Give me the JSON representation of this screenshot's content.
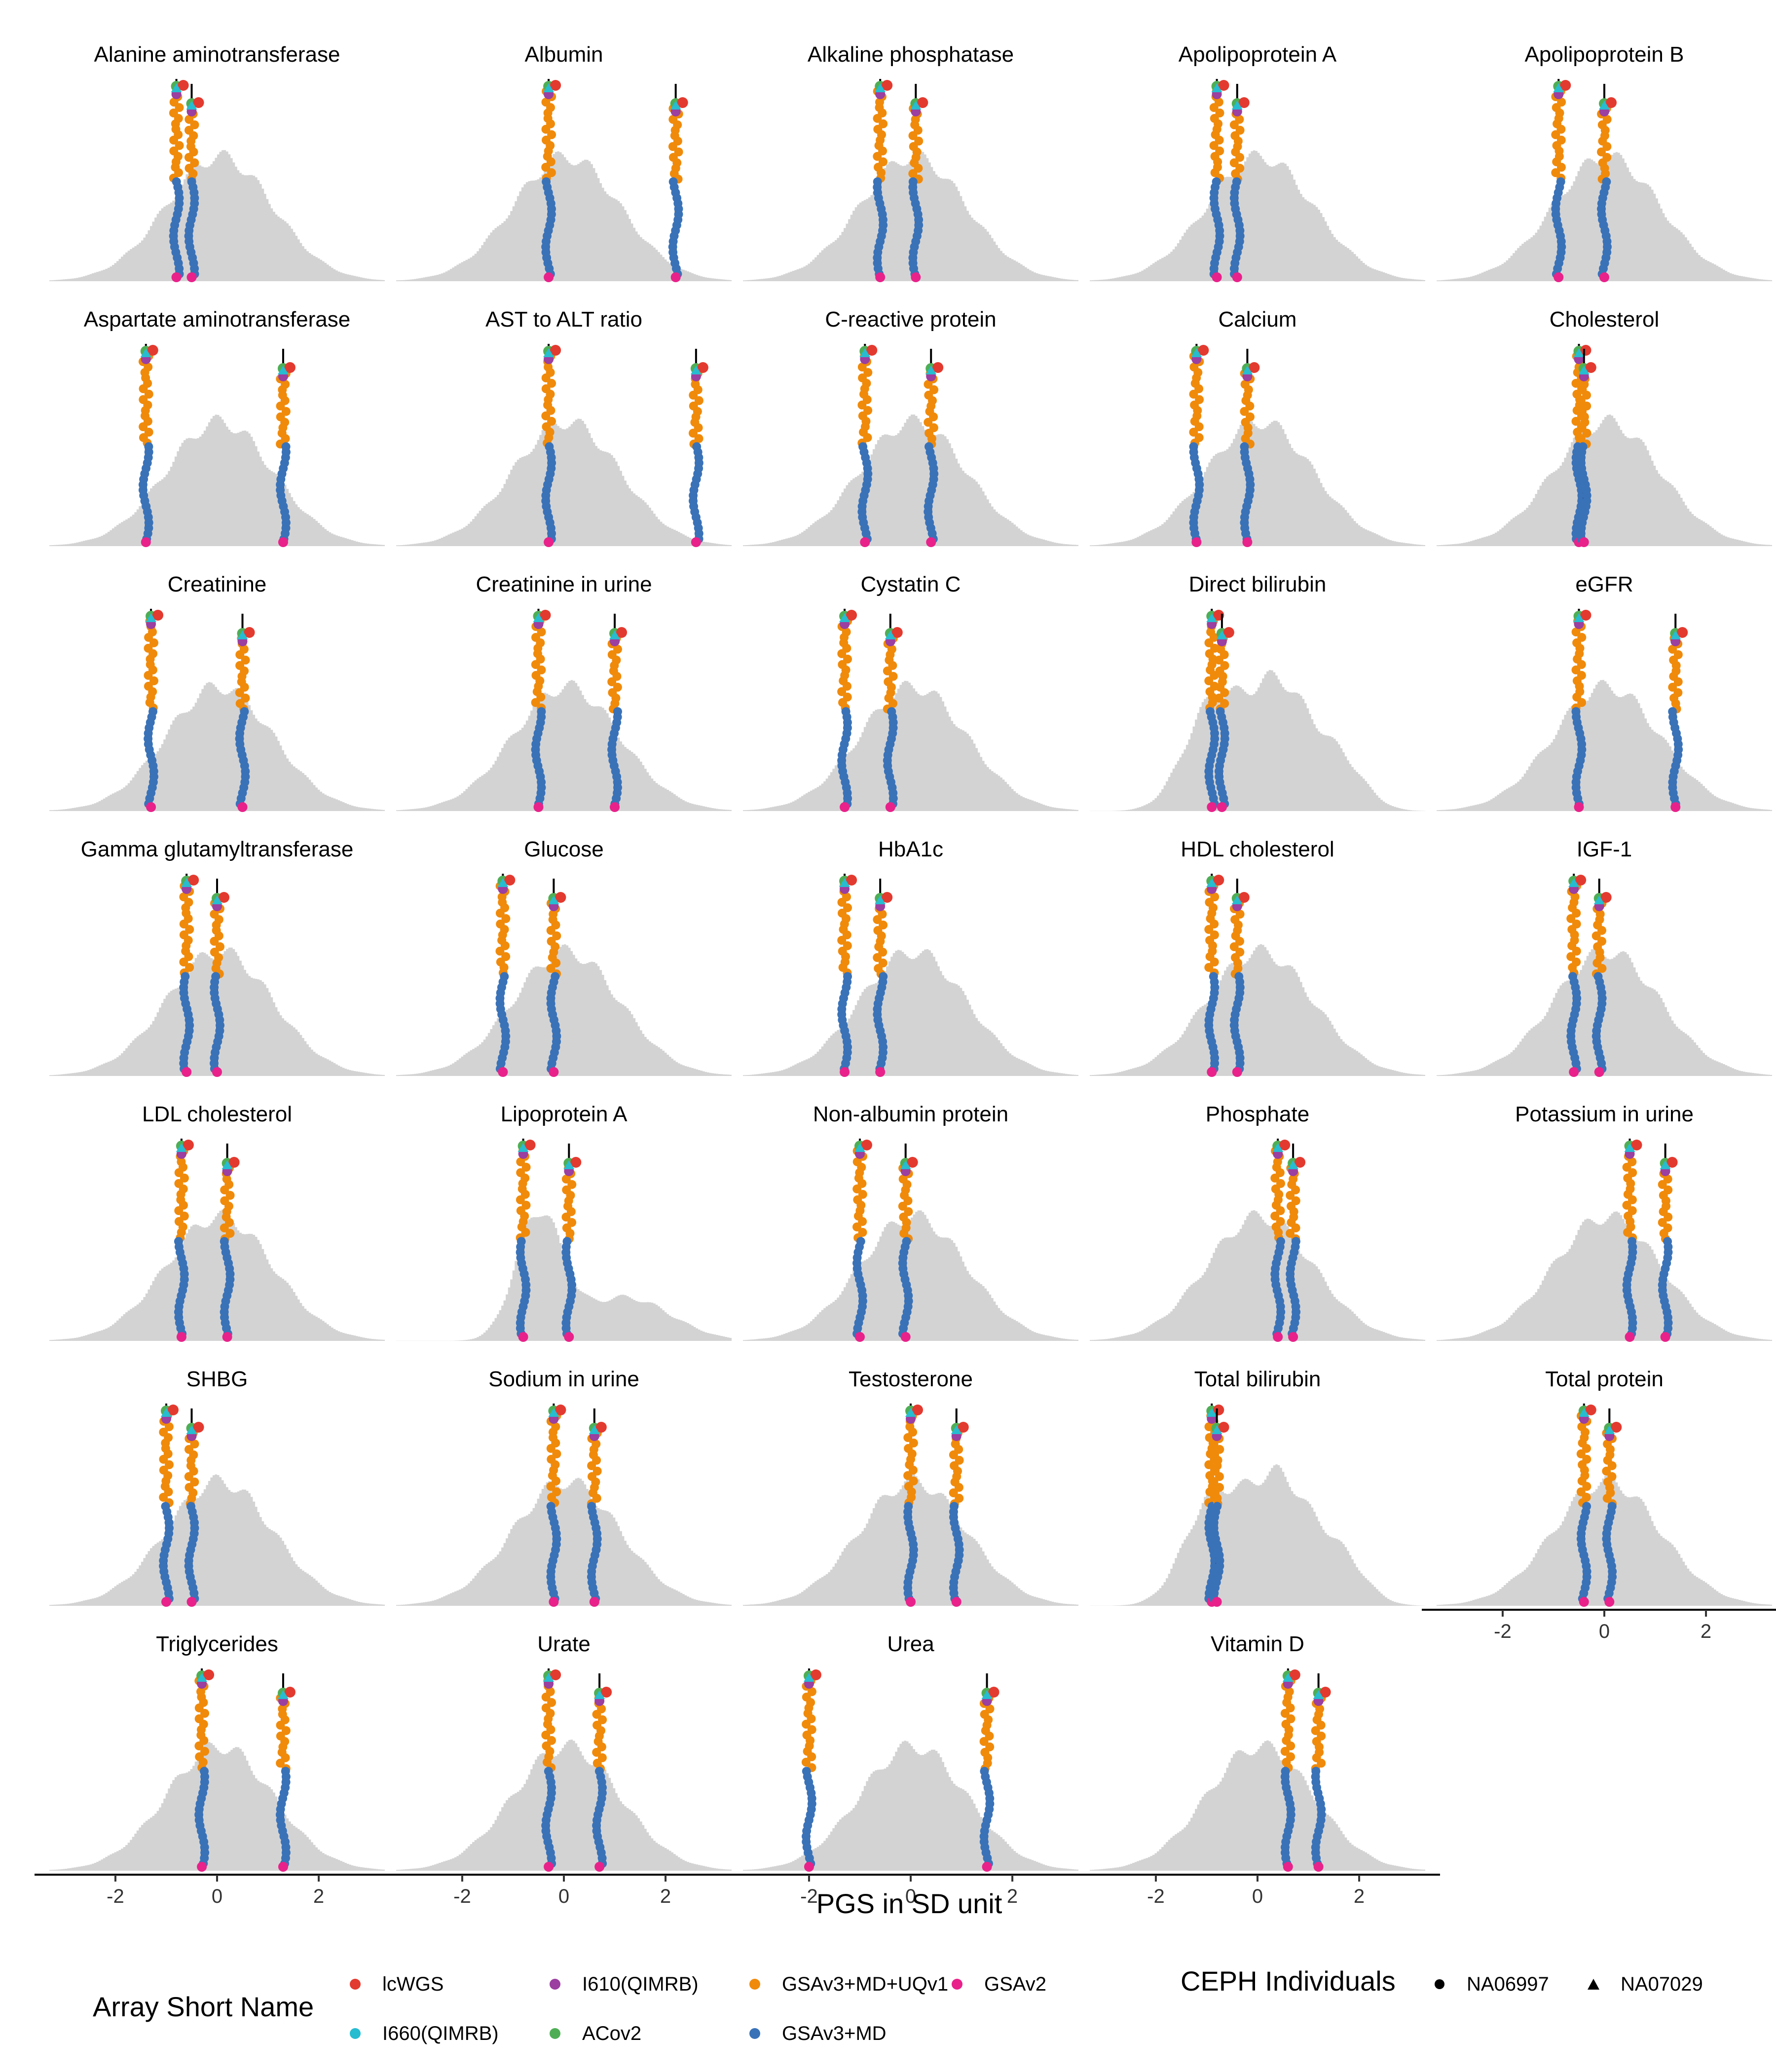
{
  "chart_data": {
    "type": "facet-histogram-strip",
    "xlabel": "PGS in SD unit",
    "xlim": [
      -3.3,
      3.3
    ],
    "x_ticks": [
      -2,
      0,
      2
    ],
    "x_tick_labels": [
      "-2",
      "0",
      "2"
    ],
    "grid": false,
    "legend_position": "bottom",
    "array_legend": {
      "title": "Array Short Name",
      "entries": [
        {
          "name": "lcWGS",
          "color": "#e33a2f"
        },
        {
          "name": "I660(QIMRB)",
          "color": "#27bcd0"
        },
        {
          "name": "I610(QIMRB)",
          "color": "#9b3fa0"
        },
        {
          "name": "ACov2",
          "color": "#4fae55"
        },
        {
          "name": "GSAv3+MD+UQv1",
          "color": "#f08a0b"
        },
        {
          "name": "GSAv3+MD",
          "color": "#3a72b8"
        },
        {
          "name": "GSAv2",
          "color": "#e8228a"
        }
      ]
    },
    "shape_legend": {
      "title": "CEPH Individuals",
      "entries": [
        {
          "name": "NA06997",
          "shape": "circle"
        },
        {
          "name": "NA07029",
          "shape": "triangle"
        }
      ]
    },
    "panels": [
      {
        "title": "Alanine aminotransferase",
        "lines": [
          -0.8,
          -0.5
        ],
        "dist": "normal"
      },
      {
        "title": "Albumin",
        "lines": [
          -0.3,
          2.2
        ],
        "dist": "normal"
      },
      {
        "title": "Alkaline phosphatase",
        "lines": [
          -0.6,
          0.1
        ],
        "dist": "normal"
      },
      {
        "title": "Apolipoprotein A",
        "lines": [
          -0.8,
          -0.4
        ],
        "dist": "normal"
      },
      {
        "title": "Apolipoprotein B",
        "lines": [
          -0.9,
          0.0
        ],
        "dist": "normal"
      },
      {
        "title": "Aspartate aminotransferase",
        "lines": [
          -1.4,
          1.3
        ],
        "dist": "normal"
      },
      {
        "title": "AST to ALT ratio",
        "lines": [
          -0.3,
          2.6
        ],
        "dist": "normal"
      },
      {
        "title": "C-reactive protein",
        "lines": [
          -0.9,
          0.4
        ],
        "dist": "normal"
      },
      {
        "title": "Calcium",
        "lines": [
          -1.2,
          -0.2
        ],
        "dist": "normal"
      },
      {
        "title": "Cholesterol",
        "lines": [
          -0.5,
          -0.4
        ],
        "dist": "normal"
      },
      {
        "title": "Creatinine",
        "lines": [
          -1.3,
          0.5
        ],
        "dist": "normal"
      },
      {
        "title": "Creatinine in urine",
        "lines": [
          -0.5,
          1.0
        ],
        "dist": "normal"
      },
      {
        "title": "Cystatin C",
        "lines": [
          -1.3,
          -0.4
        ],
        "dist": "normal"
      },
      {
        "title": "Direct bilirubin",
        "lines": [
          -0.9,
          -0.7
        ],
        "dist": "bimodal"
      },
      {
        "title": "eGFR",
        "lines": [
          -0.5,
          1.4
        ],
        "dist": "normal"
      },
      {
        "title": "Gamma glutamyltransferase",
        "lines": [
          -0.6,
          0.0
        ],
        "dist": "normal"
      },
      {
        "title": "Glucose",
        "lines": [
          -1.2,
          -0.2
        ],
        "dist": "normal"
      },
      {
        "title": "HbA1c",
        "lines": [
          -1.3,
          -0.6
        ],
        "dist": "normal"
      },
      {
        "title": "HDL cholesterol",
        "lines": [
          -0.9,
          -0.4
        ],
        "dist": "normal"
      },
      {
        "title": "IGF-1",
        "lines": [
          -0.6,
          -0.1
        ],
        "dist": "normal"
      },
      {
        "title": "LDL cholesterol",
        "lines": [
          -0.7,
          0.2
        ],
        "dist": "normal"
      },
      {
        "title": "Lipoprotein A",
        "lines": [
          -0.8,
          0.1
        ],
        "dist": "lipo"
      },
      {
        "title": "Non-albumin protein",
        "lines": [
          -1.0,
          -0.1
        ],
        "dist": "normal"
      },
      {
        "title": "Phosphate",
        "lines": [
          0.4,
          0.7
        ],
        "dist": "normal"
      },
      {
        "title": "Potassium in urine",
        "lines": [
          0.5,
          1.2
        ],
        "dist": "normal"
      },
      {
        "title": "SHBG",
        "lines": [
          -1.0,
          -0.5
        ],
        "dist": "normal"
      },
      {
        "title": "Sodium in urine",
        "lines": [
          -0.2,
          0.6
        ],
        "dist": "normal"
      },
      {
        "title": "Testosterone",
        "lines": [
          0.0,
          0.9
        ],
        "dist": "normal"
      },
      {
        "title": "Total bilirubin",
        "lines": [
          -0.9,
          -0.8
        ],
        "dist": "bimodal"
      },
      {
        "title": "Total protein",
        "lines": [
          -0.4,
          0.1
        ],
        "dist": "normal"
      },
      {
        "title": "Triglycerides",
        "lines": [
          -0.3,
          1.3
        ],
        "dist": "normal"
      },
      {
        "title": "Urate",
        "lines": [
          -0.3,
          0.7
        ],
        "dist": "normal"
      },
      {
        "title": "Urea",
        "lines": [
          -2.0,
          1.5
        ],
        "dist": "normal"
      },
      {
        "title": "Vitamin D",
        "lines": [
          0.6,
          1.2
        ],
        "dist": "normal"
      }
    ]
  }
}
